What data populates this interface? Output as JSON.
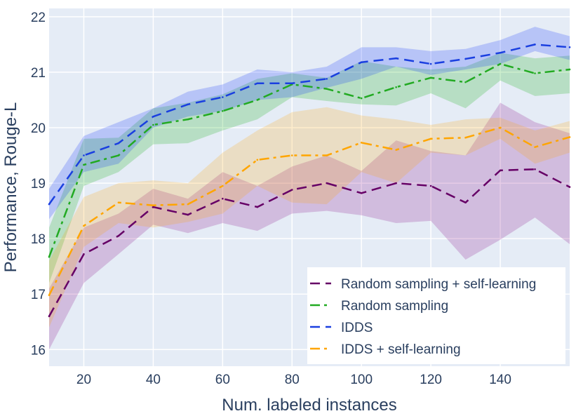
{
  "chart_data": {
    "type": "line",
    "title": "",
    "xlabel": "Num. labeled instances",
    "ylabel": "Performance, Rouge-L",
    "xlim": [
      10,
      160
    ],
    "ylim": [
      15.7,
      22.15
    ],
    "x_ticks": [
      20,
      40,
      60,
      80,
      100,
      120,
      140
    ],
    "y_ticks": [
      16,
      17,
      18,
      19,
      20,
      21,
      22
    ],
    "grid": true,
    "plot_background": "#e5ecf6",
    "legend_position": "bottom-right",
    "x": [
      10,
      20,
      30,
      40,
      50,
      60,
      70,
      80,
      90,
      100,
      110,
      120,
      130,
      140,
      150,
      160
    ],
    "series": [
      {
        "name": "Random sampling + self-learning",
        "color": "#660066",
        "band_color": "rgba(128,0,128,0.2)",
        "dash": "dash",
        "values": [
          16.6,
          17.72,
          18.05,
          18.57,
          18.43,
          18.72,
          18.57,
          18.88,
          19.0,
          18.82,
          19.0,
          18.95,
          18.65,
          19.23,
          19.25,
          18.93
        ],
        "upper": [
          17.1,
          18.2,
          18.45,
          18.9,
          18.72,
          19.2,
          18.95,
          19.3,
          19.5,
          19.22,
          19.77,
          19.58,
          19.5,
          20.45,
          20.1,
          19.9
        ],
        "lower": [
          16.0,
          17.2,
          17.72,
          18.25,
          18.1,
          18.28,
          18.14,
          18.45,
          18.5,
          18.42,
          18.28,
          18.32,
          17.62,
          17.98,
          18.38,
          17.9
        ]
      },
      {
        "name": "Random sampling",
        "color": "#22aa22",
        "band_color": "rgba(0,170,0,0.2)",
        "dash": "dashdot",
        "values": [
          17.67,
          19.33,
          19.5,
          20.05,
          20.15,
          20.3,
          20.5,
          20.78,
          20.7,
          20.53,
          20.73,
          20.9,
          20.82,
          21.15,
          20.98,
          21.05
        ],
        "upper": [
          18.2,
          19.8,
          19.82,
          20.35,
          20.45,
          20.6,
          20.88,
          20.98,
          20.9,
          21.2,
          21.1,
          21.05,
          21.1,
          21.35,
          21.25,
          21.3
        ],
        "lower": [
          17.2,
          18.95,
          19.2,
          19.7,
          19.72,
          19.95,
          20.15,
          20.55,
          20.48,
          20.42,
          20.4,
          20.62,
          20.35,
          20.85,
          20.57,
          20.62
        ]
      },
      {
        "name": "IDDS",
        "color": "#1a3fe0",
        "band_color": "rgba(0,40,255,0.2)",
        "dash": "dash",
        "values": [
          18.62,
          19.5,
          19.72,
          20.2,
          20.42,
          20.55,
          20.8,
          20.8,
          20.88,
          21.18,
          21.25,
          21.15,
          21.24,
          21.35,
          21.5,
          21.45
        ],
        "upper": [
          18.9,
          19.85,
          20.1,
          20.35,
          20.65,
          20.78,
          21.05,
          21.0,
          21.1,
          21.45,
          21.45,
          21.38,
          21.42,
          21.58,
          21.82,
          21.65
        ],
        "lower": [
          18.35,
          19.2,
          19.35,
          20.0,
          20.2,
          20.3,
          20.5,
          20.55,
          20.72,
          20.88,
          21.1,
          20.95,
          21.05,
          21.15,
          21.38,
          21.22
        ]
      },
      {
        "name": "IDDS + self-learning",
        "color": "#ffa500",
        "band_color": "rgba(255,165,0,0.2)",
        "dash": "dashdot",
        "values": [
          16.98,
          18.23,
          18.65,
          18.6,
          18.62,
          18.95,
          19.42,
          19.5,
          19.5,
          19.73,
          19.6,
          19.8,
          19.82,
          20.0,
          19.65,
          19.83
        ],
        "upper": [
          17.6,
          18.75,
          19.0,
          19.05,
          19.0,
          19.55,
          19.95,
          20.28,
          20.37,
          20.22,
          20.15,
          20.05,
          20.15,
          20.18,
          19.95,
          20.12
        ],
        "lower": [
          16.4,
          17.85,
          18.28,
          18.2,
          18.3,
          18.45,
          18.95,
          18.65,
          18.62,
          19.2,
          19.0,
          19.55,
          19.5,
          19.8,
          19.35,
          19.55
        ]
      }
    ]
  }
}
